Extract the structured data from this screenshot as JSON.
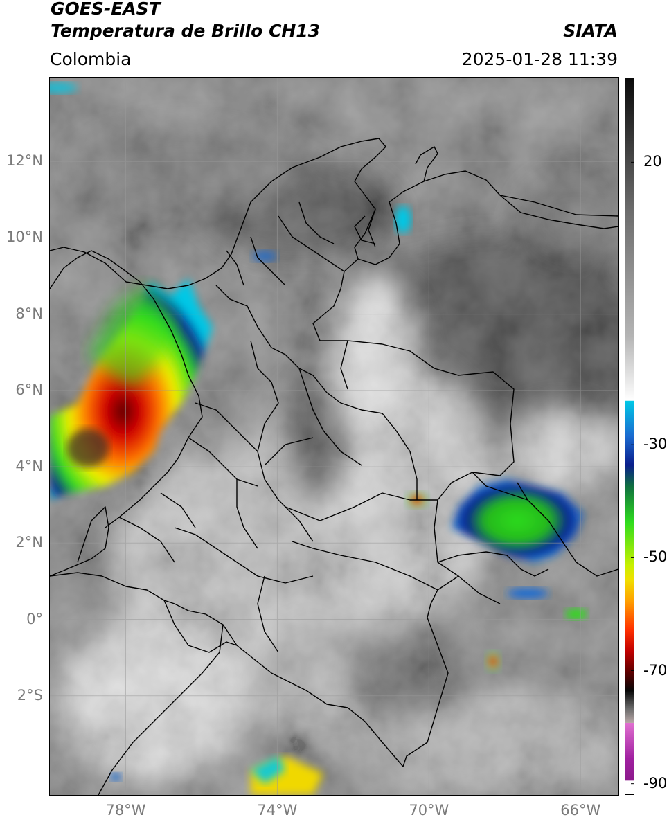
{
  "header": {
    "title_line1": "GOES-EAST",
    "title_line2": "Temperatura de Brillo CH13",
    "source": "SIATA",
    "region": "Colombia",
    "timestamp": "2025-01-28 11:39"
  },
  "map": {
    "lon_range": [
      -80,
      -65
    ],
    "lat_range": [
      -4.6,
      14.2
    ],
    "lat_ticks": [
      "12°N",
      "10°N",
      "8°N",
      "6°N",
      "4°N",
      "2°N",
      "0°",
      "2°S"
    ],
    "lon_ticks": [
      "78°W",
      "74°W",
      "70°W",
      "66°W"
    ],
    "graticule": "on"
  },
  "colorbar": {
    "range": [
      -92,
      35
    ],
    "tick_labels": [
      "20",
      "-30",
      "-50",
      "-70",
      "-90"
    ],
    "colors": {
      "warm": "#111111",
      "mid": "#7f7f7f",
      "light": "#f2f2f2",
      "cyan": "#00c8e6",
      "blue": "#0a1e8c",
      "green": "#2edc1e",
      "yellow": "#f0f000",
      "orange": "#ff7800",
      "red": "#d20000",
      "dark_red": "#5a0000",
      "purple": "#8c1a8c"
    }
  }
}
